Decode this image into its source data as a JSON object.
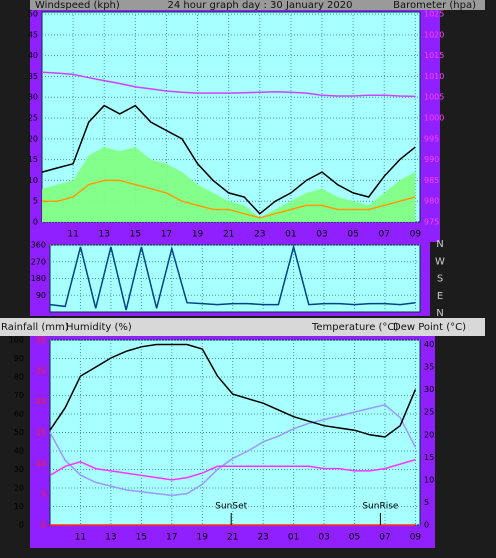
{
  "chart_data": [
    {
      "type": "line",
      "title": "24 hour graph day : 30 January 2020",
      "ylabel": "Windspeed (kph)",
      "y2label": "Barometer (hpa)",
      "x": [
        0,
        1,
        2,
        3,
        4,
        5,
        6,
        7,
        8,
        9,
        10,
        11,
        12,
        13,
        14,
        15,
        16,
        17,
        18,
        19,
        20,
        21,
        22,
        23,
        24
      ],
      "xlim": [
        0,
        24.3
      ],
      "xticks": [
        {
          "value": 2,
          "label": "11"
        },
        {
          "value": 4,
          "label": "13"
        },
        {
          "value": 6,
          "label": "15"
        },
        {
          "value": 8,
          "label": "17"
        },
        {
          "value": 10,
          "label": "19"
        },
        {
          "value": 12,
          "label": "21"
        },
        {
          "value": 14,
          "label": "23"
        },
        {
          "value": 16,
          "label": "01"
        },
        {
          "value": 18,
          "label": "03"
        },
        {
          "value": 20,
          "label": "05"
        },
        {
          "value": 22,
          "label": "07"
        },
        {
          "value": 24,
          "label": "09"
        }
      ],
      "ylim": [
        0,
        50.5
      ],
      "yticks": [
        0,
        5,
        10,
        15,
        20,
        25,
        30,
        35,
        40,
        45,
        50
      ],
      "y2lim": [
        975,
        1025.5
      ],
      "y2ticks": [
        975,
        980,
        985,
        990,
        995,
        1000,
        1005,
        1010,
        1015,
        1020,
        1025
      ],
      "axis_colors": {
        "y": "#000000",
        "y2": "#ff40ff"
      },
      "grid": true,
      "series": [
        {
          "color": "#80ff80",
          "style": "area",
          "values": [
            8,
            9,
            10,
            16,
            18,
            17,
            18,
            15,
            14,
            12,
            9,
            7,
            5,
            4,
            1,
            3,
            5,
            7,
            8,
            6,
            5,
            4,
            7,
            10,
            12
          ]
        },
        {
          "color": "#000000",
          "values": [
            12,
            13,
            14,
            24,
            28,
            26,
            28,
            24,
            22,
            20,
            14,
            10,
            7,
            6,
            2,
            5,
            7,
            10,
            12,
            9,
            7,
            6,
            11,
            15,
            18
          ]
        },
        {
          "color": "#ff9900",
          "values": [
            5,
            5,
            6,
            9,
            10,
            10,
            9,
            8,
            7,
            5,
            4,
            3,
            3,
            2,
            1,
            2,
            3,
            4,
            4,
            3,
            3,
            3,
            4,
            5,
            6
          ]
        },
        {
          "color": "#cc44ff",
          "axis": "y2",
          "values": [
            1011,
            1010.8,
            1010.5,
            1009.7,
            1009,
            1008.3,
            1007.5,
            1007,
            1006.5,
            1006.2,
            1006,
            1006,
            1006,
            1006.1,
            1006.2,
            1006.3,
            1006.2,
            1006,
            1005.5,
            1005.3,
            1005.3,
            1005.5,
            1005.5,
            1005.3,
            1005.2
          ]
        }
      ]
    },
    {
      "type": "line",
      "x": [
        0,
        1,
        2,
        3,
        4,
        5,
        6,
        7,
        8,
        9,
        10,
        11,
        12,
        13,
        14,
        15,
        16,
        17,
        18,
        19,
        20,
        21,
        22,
        23,
        24
      ],
      "xlim": [
        0,
        24.3
      ],
      "xticks": [
        2,
        4,
        6,
        8,
        10,
        12,
        14,
        16,
        18,
        20,
        22,
        24
      ],
      "ylim": [
        0,
        360
      ],
      "yticks": [
        90,
        180,
        270,
        360
      ],
      "axis_colors": {
        "y": "#000000"
      },
      "direction_labels": [
        "N",
        "W",
        "S",
        "E",
        "N"
      ],
      "grid": true,
      "series": [
        {
          "color": "#004488",
          "values": [
            40,
            30,
            350,
            20,
            350,
            10,
            350,
            20,
            340,
            50,
            45,
            40,
            45,
            45,
            40,
            40,
            350,
            40,
            45,
            45,
            40,
            45,
            45,
            40,
            50
          ]
        }
      ]
    },
    {
      "type": "line",
      "labels": [
        "Rainfall (mm)",
        "Humidity (%)",
        "Temperature (°C)",
        "Dew Point (°C)"
      ],
      "x": [
        0,
        1,
        2,
        3,
        4,
        5,
        6,
        7,
        8,
        9,
        10,
        11,
        12,
        13,
        14,
        15,
        16,
        17,
        18,
        19,
        20,
        21,
        22,
        23,
        24
      ],
      "xlim": [
        0,
        24.3
      ],
      "xticks": [
        {
          "value": 2,
          "label": "11"
        },
        {
          "value": 4,
          "label": "13"
        },
        {
          "value": 6,
          "label": "15"
        },
        {
          "value": 8,
          "label": "17"
        },
        {
          "value": 10,
          "label": "19"
        },
        {
          "value": 12,
          "label": "21"
        },
        {
          "value": 14,
          "label": "23"
        },
        {
          "value": 16,
          "label": "01"
        },
        {
          "value": 18,
          "label": "03"
        },
        {
          "value": 20,
          "label": "05"
        },
        {
          "value": 22,
          "label": "07"
        },
        {
          "value": 24,
          "label": "09"
        }
      ],
      "ylim": [
        0,
        100
      ],
      "yticks": [
        0,
        10,
        20,
        30,
        40,
        50,
        60,
        70,
        80,
        90,
        100
      ],
      "y2lim": [
        0,
        41
      ],
      "y2ticks": [
        0,
        5,
        10,
        15,
        20,
        25,
        30,
        35,
        40
      ],
      "y3lim": [
        0,
        30
      ],
      "y3ticks": [
        0,
        5,
        10,
        15,
        20,
        25,
        30
      ],
      "axis_colors": {
        "y": "#000000",
        "y2": "#000000",
        "y3": "#ff2020"
      },
      "grid": true,
      "annotations": [
        {
          "label": "SunSet",
          "x": 11.9
        },
        {
          "label": "SunRise",
          "x": 21.7
        }
      ],
      "series": [
        {
          "color": "#ff3300",
          "axis": "y3",
          "values": [
            0,
            0,
            0,
            0,
            0,
            0,
            0,
            0,
            0,
            0,
            0,
            0,
            0,
            0,
            0,
            0,
            0,
            0,
            0,
            0,
            0,
            0,
            0,
            0,
            0
          ]
        },
        {
          "color": "#9999ff",
          "values": [
            50,
            35,
            27,
            23,
            21,
            19,
            18,
            17,
            16,
            17,
            22,
            30,
            36,
            40,
            45,
            48,
            52,
            55,
            57,
            59,
            61,
            63,
            65,
            58,
            42
          ]
        },
        {
          "color": "#ff33ff",
          "axis": "y2",
          "values": [
            11,
            13,
            14,
            12.5,
            12,
            11.5,
            11,
            10.5,
            10,
            10.5,
            11.5,
            13,
            13,
            13,
            13,
            13,
            13,
            13,
            12.5,
            12.5,
            12,
            12,
            12.5,
            13.5,
            14.5
          ]
        },
        {
          "color": "#000000",
          "axis": "y2",
          "values": [
            21,
            26,
            33,
            35,
            37,
            38.5,
            39.5,
            40,
            40,
            40,
            39,
            33,
            29,
            28,
            27,
            25.5,
            24,
            23,
            22,
            21.5,
            21,
            20,
            19.5,
            22,
            30
          ]
        }
      ]
    }
  ]
}
